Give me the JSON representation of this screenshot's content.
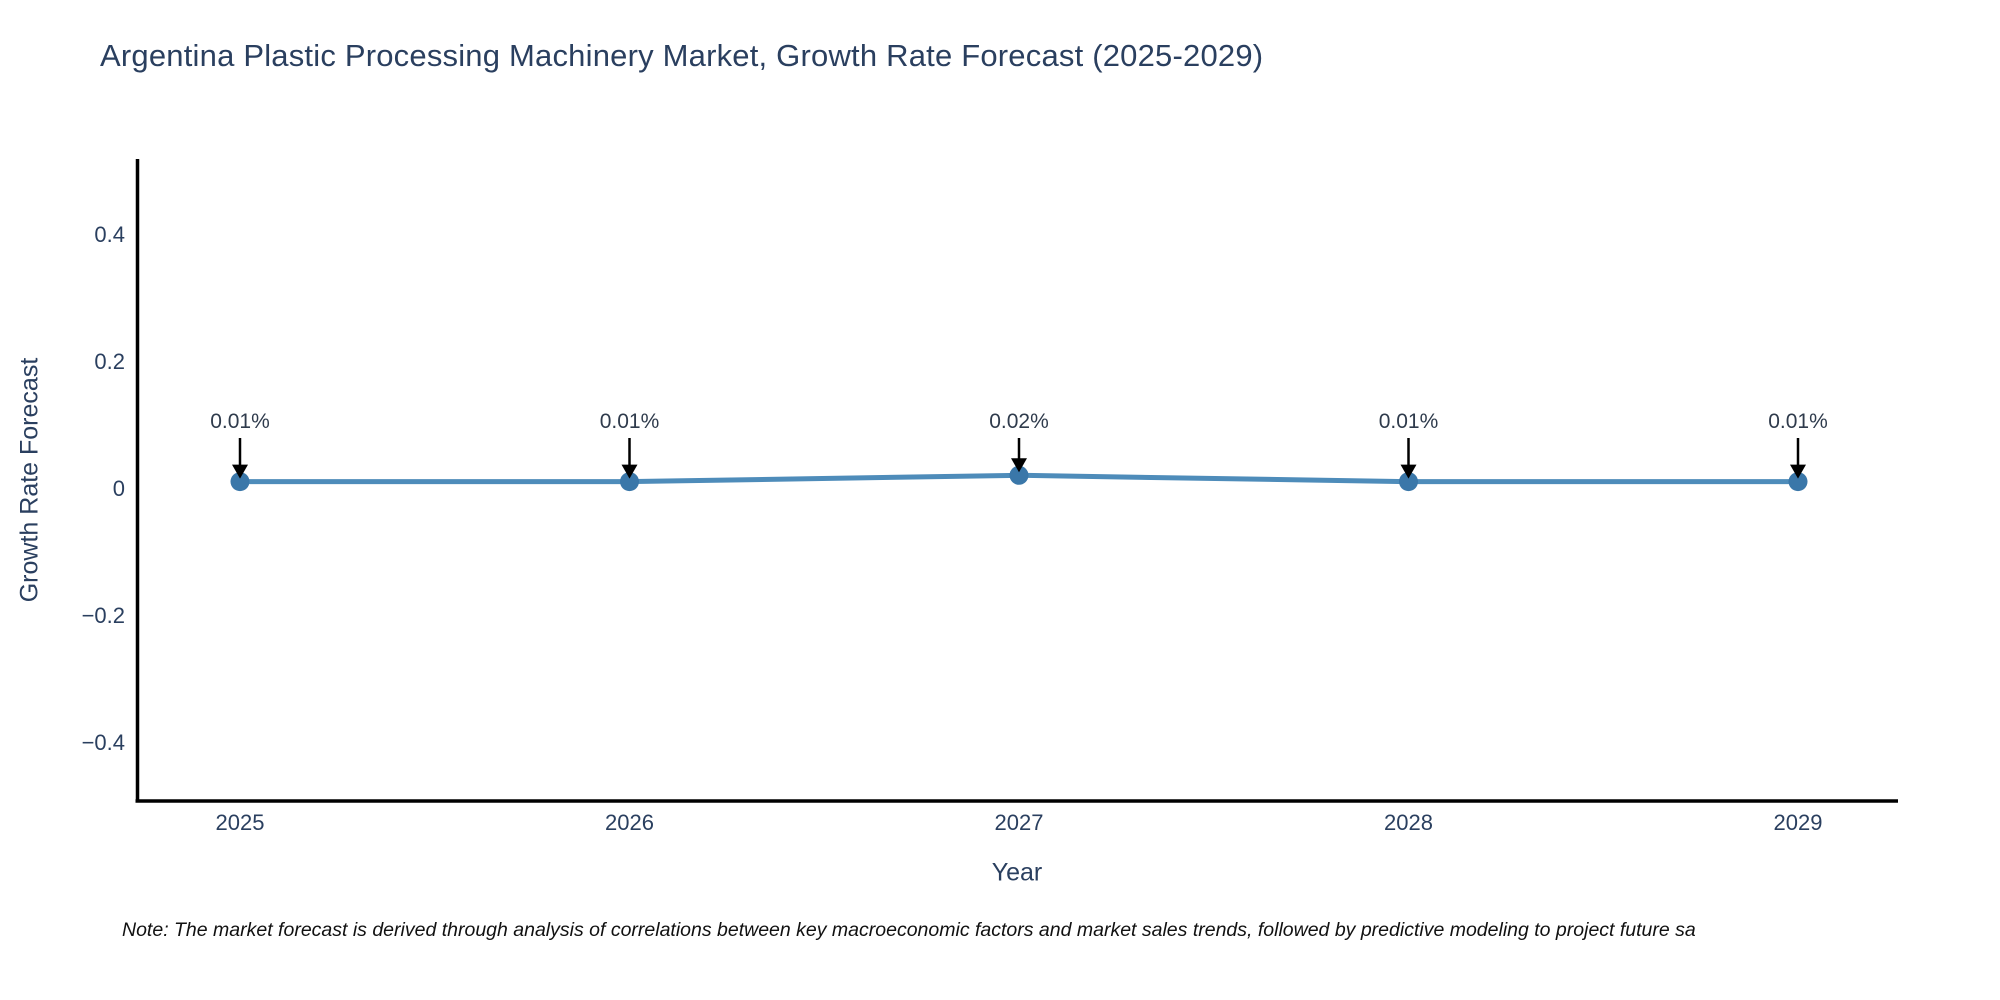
{
  "page": {
    "background": "#ffffff"
  },
  "chart_data": {
    "type": "line",
    "title": "Argentina Plastic Processing Machinery Market, Growth Rate Forecast (2025-2029)",
    "xlabel": "Year",
    "ylabel": "Growth Rate Forecast",
    "categories": [
      "2025",
      "2026",
      "2027",
      "2028",
      "2029"
    ],
    "series": [
      {
        "name": "Growth Rate Forecast",
        "values": [
          0.01,
          0.01,
          0.02,
          0.01,
          0.01
        ]
      }
    ],
    "point_labels": [
      "0.01%",
      "0.01%",
      "0.02%",
      "0.01%",
      "0.01%"
    ],
    "yticks": [
      {
        "value": 0.4,
        "label": "0.4"
      },
      {
        "value": 0.2,
        "label": "0.2"
      },
      {
        "value": 0,
        "label": "0"
      },
      {
        "value": -0.2,
        "label": "−0.2"
      },
      {
        "value": -0.4,
        "label": "−0.4"
      }
    ],
    "ylim": [
      -0.49,
      0.52
    ],
    "grid": false,
    "legend": "none",
    "colors": {
      "line": "#4e8cba",
      "marker": "#3a77a9",
      "axis": "#000000",
      "tick_text": "#2a3f5f",
      "annotation_text": "#2f3b4c",
      "arrow": "#000000"
    }
  },
  "note": {
    "text": "Note: The market forecast is derived through analysis of correlations between key macroeconomic factors and market sales trends, followed by predictive modeling to project future sa"
  }
}
